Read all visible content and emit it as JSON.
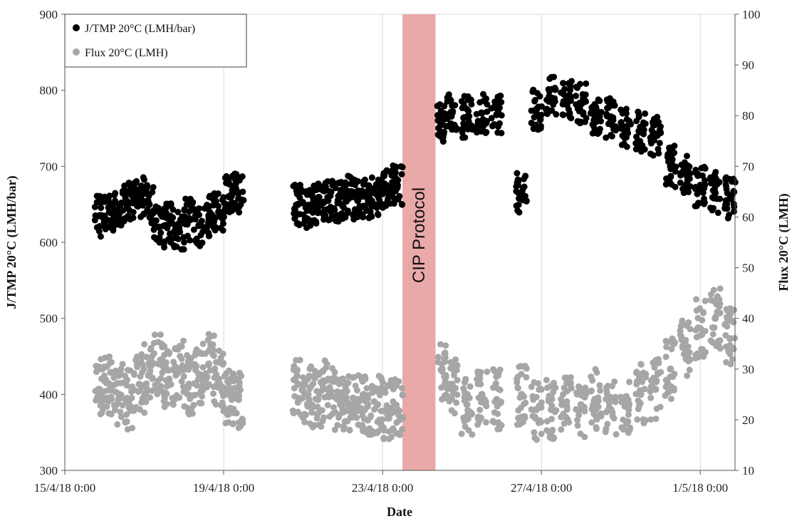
{
  "chart_data": {
    "type": "scatter",
    "xlabel": "Date",
    "ylabel_left": "J/TMP 20°C (LMH/bar)",
    "ylabel_right": "Flux 20°C (LMH)",
    "x_ticks": [
      "15/4/18 0:00",
      "19/4/18 0:00",
      "23/4/18 0:00",
      "27/4/18 0:00",
      "1/5/18 0:00"
    ],
    "xlim": [
      "2018-04-15",
      "2018-05-01 21:00"
    ],
    "ylim_left": [
      300,
      900
    ],
    "yticks_left": [
      "300",
      "400",
      "500",
      "600",
      "700",
      "800",
      "900"
    ],
    "ylim_right": [
      10,
      100
    ],
    "yticks_right": [
      "10",
      "20",
      "30",
      "40",
      "50",
      "60",
      "70",
      "80",
      "90",
      "100"
    ],
    "grid": "vertical",
    "legend": "top-left",
    "annotation": {
      "text": "CIP Protocol",
      "x_start": "2018-04-23 12:00",
      "x_end": "2018-04-24 08:00",
      "color": "#eaa9a9"
    },
    "series": [
      {
        "name": "J/TMP 20°C (LMH/bar)",
        "axis": "left",
        "color": "#000000",
        "points": [
          [
            "2018-04-15 21:00",
            635
          ],
          [
            "2018-04-16 03:00",
            640
          ],
          [
            "2018-04-16 09:00",
            645
          ],
          [
            "2018-04-16 15:00",
            652
          ],
          [
            "2018-04-16 21:00",
            660
          ],
          [
            "2018-04-17 03:00",
            650
          ],
          [
            "2018-04-17 09:00",
            620
          ],
          [
            "2018-04-17 15:00",
            625
          ],
          [
            "2018-04-17 21:00",
            618
          ],
          [
            "2018-04-18 03:00",
            630
          ],
          [
            "2018-04-18 09:00",
            622
          ],
          [
            "2018-04-18 15:00",
            635
          ],
          [
            "2018-04-18 21:00",
            640
          ],
          [
            "2018-04-19 03:00",
            660
          ],
          [
            "2018-04-19 09:00",
            665
          ],
          [
            "2018-04-20 21:00",
            650
          ],
          [
            "2018-04-21 03:00",
            645
          ],
          [
            "2018-04-21 09:00",
            650
          ],
          [
            "2018-04-21 15:00",
            655
          ],
          [
            "2018-04-21 21:00",
            652
          ],
          [
            "2018-04-22 03:00",
            660
          ],
          [
            "2018-04-22 09:00",
            655
          ],
          [
            "2018-04-22 15:00",
            658
          ],
          [
            "2018-04-22 21:00",
            662
          ],
          [
            "2018-04-23 03:00",
            668
          ],
          [
            "2018-04-23 09:00",
            675
          ],
          [
            "2018-04-24 12:00",
            760
          ],
          [
            "2018-04-24 18:00",
            770
          ],
          [
            "2018-04-25 03:00",
            765
          ],
          [
            "2018-04-25 12:00",
            770
          ],
          [
            "2018-04-25 21:00",
            768
          ],
          [
            "2018-04-26 12:00",
            665
          ],
          [
            "2018-04-26 21:00",
            775
          ],
          [
            "2018-04-27 06:00",
            790
          ],
          [
            "2018-04-27 15:00",
            788
          ],
          [
            "2018-04-28 00:00",
            782
          ],
          [
            "2018-04-28 09:00",
            770
          ],
          [
            "2018-04-28 18:00",
            765
          ],
          [
            "2018-04-29 03:00",
            752
          ],
          [
            "2018-04-29 12:00",
            745
          ],
          [
            "2018-04-29 21:00",
            740
          ],
          [
            "2018-04-30 06:00",
            700
          ],
          [
            "2018-04-30 15:00",
            690
          ],
          [
            "2018-05-01 00:00",
            675
          ],
          [
            "2018-05-01 09:00",
            665
          ],
          [
            "2018-05-01 18:00",
            658
          ]
        ]
      },
      {
        "name": "Flux 20°C (LMH)",
        "axis": "right",
        "color": "#a6a6a6",
        "points": [
          [
            "2018-04-15 21:00",
            26
          ],
          [
            "2018-04-16 03:00",
            27
          ],
          [
            "2018-04-16 09:00",
            25
          ],
          [
            "2018-04-16 15:00",
            24
          ],
          [
            "2018-04-16 21:00",
            27
          ],
          [
            "2018-04-17 03:00",
            29
          ],
          [
            "2018-04-17 09:00",
            31
          ],
          [
            "2018-04-17 15:00",
            28
          ],
          [
            "2018-04-17 21:00",
            30
          ],
          [
            "2018-04-18 03:00",
            27
          ],
          [
            "2018-04-18 09:00",
            29
          ],
          [
            "2018-04-18 15:00",
            31
          ],
          [
            "2018-04-18 21:00",
            28
          ],
          [
            "2018-04-19 03:00",
            25
          ],
          [
            "2018-04-19 09:00",
            24
          ],
          [
            "2018-04-20 21:00",
            27
          ],
          [
            "2018-04-21 03:00",
            25
          ],
          [
            "2018-04-21 09:00",
            24
          ],
          [
            "2018-04-21 15:00",
            26
          ],
          [
            "2018-04-21 21:00",
            24
          ],
          [
            "2018-04-22 03:00",
            23
          ],
          [
            "2018-04-22 09:00",
            24
          ],
          [
            "2018-04-22 15:00",
            23
          ],
          [
            "2018-04-22 21:00",
            23
          ],
          [
            "2018-04-23 03:00",
            22
          ],
          [
            "2018-04-23 09:00",
            22
          ],
          [
            "2018-04-24 12:00",
            30
          ],
          [
            "2018-04-24 18:00",
            27
          ],
          [
            "2018-04-25 03:00",
            23
          ],
          [
            "2018-04-25 12:00",
            25
          ],
          [
            "2018-04-25 21:00",
            24
          ],
          [
            "2018-04-26 12:00",
            25
          ],
          [
            "2018-04-26 21:00",
            22
          ],
          [
            "2018-04-27 06:00",
            22
          ],
          [
            "2018-04-27 15:00",
            23
          ],
          [
            "2018-04-28 00:00",
            22
          ],
          [
            "2018-04-28 09:00",
            24
          ],
          [
            "2018-04-28 18:00",
            22
          ],
          [
            "2018-04-29 03:00",
            23
          ],
          [
            "2018-04-29 12:00",
            25
          ],
          [
            "2018-04-29 21:00",
            26
          ],
          [
            "2018-04-30 06:00",
            30
          ],
          [
            "2018-04-30 15:00",
            34
          ],
          [
            "2018-05-01 00:00",
            38
          ],
          [
            "2018-05-01 09:00",
            40
          ],
          [
            "2018-05-01 18:00",
            36
          ]
        ]
      }
    ]
  }
}
